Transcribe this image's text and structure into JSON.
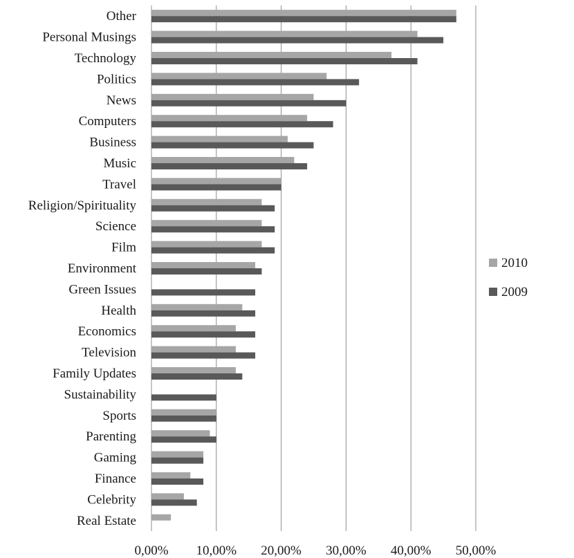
{
  "chart_data": {
    "type": "bar",
    "orientation": "horizontal",
    "title": "",
    "xlabel": "",
    "ylabel": "",
    "xlim": [
      0,
      50
    ],
    "x_ticks": [
      "0,00%",
      "10,00%",
      "20,00%",
      "30,00%",
      "40,00%",
      "50,00%"
    ],
    "grid": true,
    "legend_position": "right",
    "categories": [
      "Other",
      "Personal Musings",
      "Technology",
      "Politics",
      "News",
      "Computers",
      "Business",
      "Music",
      "Travel",
      "Religion/Spirituality",
      "Science",
      "Film",
      "Environment",
      "Green Issues",
      "Health",
      "Economics",
      "Television",
      "Family Updates",
      "Sustainability",
      "Sports",
      "Parenting",
      "Gaming",
      "Finance",
      "Celebrity",
      "Real Estate"
    ],
    "series": [
      {
        "name": "2010",
        "color": "#a6a6a6",
        "values": [
          47,
          41,
          37,
          27,
          25,
          24,
          21,
          22,
          20,
          17,
          17,
          17,
          16,
          0,
          14,
          13,
          13,
          13,
          0,
          10,
          9,
          8,
          6,
          5,
          3
        ]
      },
      {
        "name": "2009",
        "color": "#595959",
        "values": [
          47,
          45,
          41,
          32,
          30,
          28,
          25,
          24,
          20,
          19,
          19,
          19,
          17,
          16,
          16,
          16,
          16,
          14,
          10,
          10,
          10,
          8,
          8,
          7,
          0
        ]
      }
    ]
  }
}
